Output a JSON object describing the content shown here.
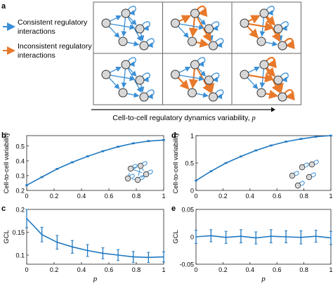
{
  "panel_labels": {
    "a": "a",
    "b": "b",
    "c": "c",
    "d": "d",
    "e": "e"
  },
  "legend": {
    "consistent": "Consistent regulatory\ninteractions",
    "inconsistent": "Inconsistent regulatory\ninteractions"
  },
  "axis_caption": {
    "text": "Cell-to-cell regulatory dynamics variability, ",
    "symbol": "p"
  },
  "colors": {
    "consistent": "#3a8fd6",
    "inconsistent": "#e8792b",
    "line": "#1f78c1",
    "node_fill": "#d8d8d8"
  },
  "networks": [
    {
      "row": 0,
      "col": 0,
      "orange": []
    },
    {
      "row": 0,
      "col": 1,
      "orange": [
        0,
        2,
        5,
        6
      ]
    },
    {
      "row": 0,
      "col": 2,
      "orange": [
        0,
        1,
        3,
        6,
        7
      ]
    },
    {
      "row": 1,
      "col": 0,
      "orange": []
    },
    {
      "row": 1,
      "col": 1,
      "orange": [
        2,
        3,
        4,
        6
      ]
    },
    {
      "row": 1,
      "col": 2,
      "orange": [
        1,
        4,
        5,
        6,
        7
      ]
    }
  ],
  "chart_data": [
    {
      "id": "b",
      "type": "line",
      "ylabel": "Cell-to-cell variability",
      "xlabel": "",
      "xlim": [
        0,
        1
      ],
      "ylim": [
        0.2,
        0.57
      ],
      "xticks": [
        "0",
        "0.2",
        "0.4",
        "0.6",
        "0.8",
        "1"
      ],
      "yticks": [
        "0.2",
        "0.3",
        "0.4",
        "0.5"
      ],
      "x": [
        0,
        0.111,
        0.222,
        0.333,
        0.444,
        0.556,
        0.667,
        0.778,
        0.889,
        1
      ],
      "y": [
        0.235,
        0.29,
        0.345,
        0.39,
        0.43,
        0.465,
        0.495,
        0.518,
        0.533,
        0.54
      ],
      "err": [
        0.004,
        0.004,
        0.004,
        0.004,
        0.004,
        0.004,
        0.004,
        0.004,
        0.004,
        0.004
      ]
    },
    {
      "id": "c",
      "type": "line",
      "ylabel": "GCL",
      "xlabel": "p",
      "xlim": [
        0,
        1
      ],
      "ylim": [
        0.08,
        0.2
      ],
      "xticks": [
        "0",
        "0.2",
        "0.4",
        "0.6",
        "0.8",
        "1"
      ],
      "yticks": [
        "0.1",
        "0.15",
        "0.2"
      ],
      "x": [
        0,
        0.111,
        0.222,
        0.333,
        0.444,
        0.556,
        0.667,
        0.778,
        0.889,
        1
      ],
      "y": [
        0.18,
        0.145,
        0.128,
        0.118,
        0.11,
        0.104,
        0.1,
        0.096,
        0.095,
        0.096
      ],
      "err": [
        0.02,
        0.016,
        0.015,
        0.014,
        0.013,
        0.012,
        0.012,
        0.012,
        0.011,
        0.011
      ]
    },
    {
      "id": "d",
      "type": "line",
      "ylabel": "Cell-to-cell variability",
      "xlabel": "",
      "xlim": [
        0,
        1
      ],
      "ylim": [
        0,
        1
      ],
      "xticks": [
        "0",
        "0.2",
        "0.4",
        "0.6",
        "0.8",
        "1"
      ],
      "yticks": [
        "0",
        "0.5",
        "1"
      ],
      "x": [
        0,
        0.111,
        0.222,
        0.333,
        0.444,
        0.556,
        0.667,
        0.778,
        0.889,
        1
      ],
      "y": [
        0.18,
        0.35,
        0.5,
        0.62,
        0.73,
        0.82,
        0.89,
        0.94,
        0.98,
        1.0
      ],
      "err": [
        0.01,
        0.01,
        0.01,
        0.01,
        0.01,
        0.01,
        0.01,
        0.01,
        0.01,
        0.01
      ]
    },
    {
      "id": "e",
      "type": "line",
      "ylabel": "GCL",
      "xlabel": "p",
      "xlim": [
        0,
        1
      ],
      "ylim": [
        -0.05,
        0.05
      ],
      "xticks": [
        "0",
        "0.2",
        "0.4",
        "0.6",
        "0.8",
        "1"
      ],
      "yticks": [
        "-0.05",
        "0",
        "0.05"
      ],
      "x": [
        0,
        0.111,
        0.222,
        0.333,
        0.444,
        0.556,
        0.667,
        0.778,
        0.889,
        1
      ],
      "y": [
        0.0,
        0.002,
        -0.001,
        0.001,
        -0.002,
        0.001,
        0.0,
        -0.001,
        0.001,
        -0.002
      ],
      "err": [
        0.012,
        0.011,
        0.011,
        0.012,
        0.011,
        0.012,
        0.011,
        0.012,
        0.011,
        0.012
      ]
    }
  ]
}
